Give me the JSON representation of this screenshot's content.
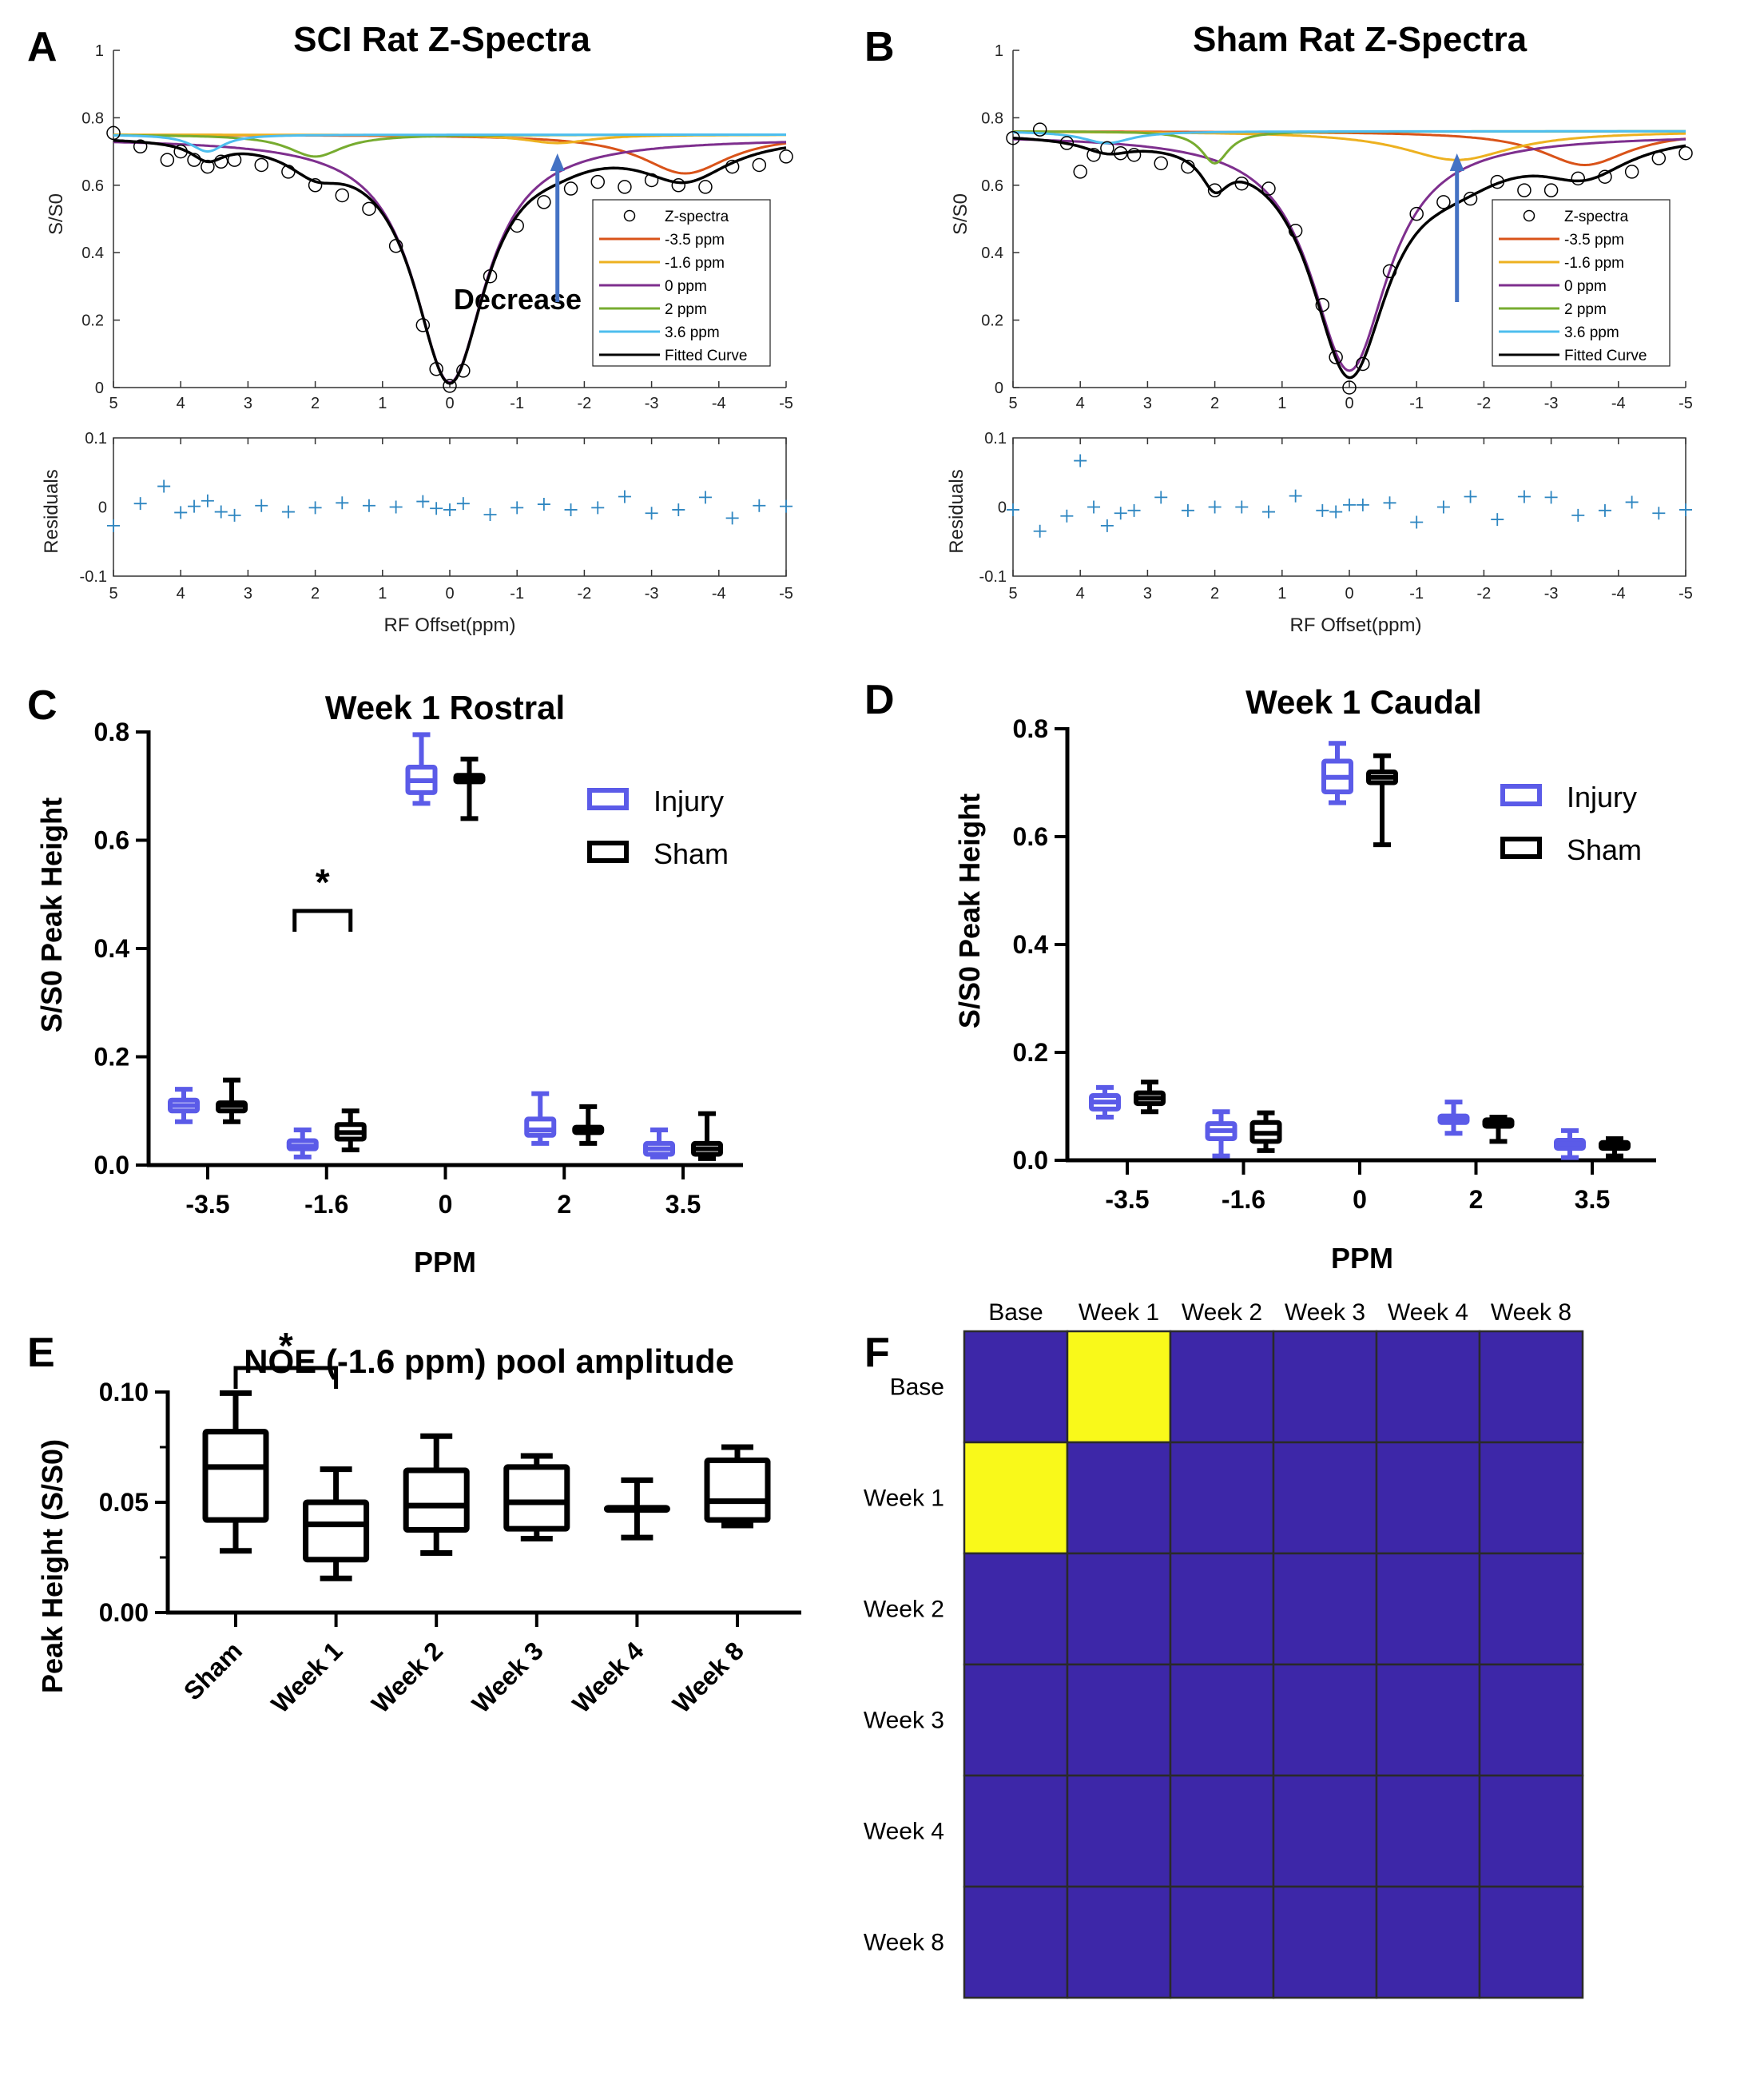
{
  "figure": {
    "panel_letters": [
      "A",
      "B",
      "C",
      "D",
      "E",
      "F"
    ]
  },
  "chart_data": [
    {
      "id": "A",
      "type": "line",
      "title": "SCI Rat Z-Spectra",
      "xlabel": "RF Offset(ppm)",
      "ylabel": "S/S0",
      "xlim": [
        5,
        -5
      ],
      "ylim": [
        0,
        1
      ],
      "xticks": [
        "5",
        "4",
        "3",
        "2",
        "1",
        "0",
        "-1",
        "-2",
        "-3",
        "-4",
        "-5"
      ],
      "yticks": [
        "0",
        "0.2",
        "0.4",
        "0.6",
        "0.8",
        "1"
      ],
      "legend": [
        "Z-spectra",
        "-3.5 ppm",
        "-1.6 ppm",
        "0 ppm",
        "2 ppm",
        "3.6 ppm",
        "Fitted Curve"
      ],
      "legend_position": "lower-right",
      "annotation": "Decrease",
      "arrow_at_ppm": -1.6,
      "baseline": 0.75,
      "pools": [
        {
          "name": "-3.5 ppm",
          "center": -3.5,
          "depth": 0.115,
          "width": 1.6,
          "color": "#D95319"
        },
        {
          "name": "-1.6 ppm",
          "center": -1.6,
          "depth": 0.025,
          "width": 1.2,
          "color": "#EDB120"
        },
        {
          "name": "0 ppm",
          "center": 0,
          "depth": 0.725,
          "width": 1.3,
          "color": "#7E2F8E",
          "offset": -0.01
        },
        {
          "name": "2 ppm",
          "center": 2,
          "depth": 0.065,
          "width": 1.0,
          "color": "#77AC30"
        },
        {
          "name": "3.6 ppm",
          "center": 3.6,
          "depth": 0.05,
          "width": 0.6,
          "color": "#4DBEEE"
        }
      ],
      "fitted_color": "#000000",
      "z_spectra_points": [
        [
          5,
          0.755
        ],
        [
          4.6,
          0.715
        ],
        [
          4.2,
          0.675
        ],
        [
          4.0,
          0.7
        ],
        [
          3.8,
          0.675
        ],
        [
          3.6,
          0.655
        ],
        [
          3.4,
          0.67
        ],
        [
          3.2,
          0.675
        ],
        [
          2.8,
          0.66
        ],
        [
          2.4,
          0.64
        ],
        [
          2.0,
          0.6
        ],
        [
          1.6,
          0.57
        ],
        [
          1.2,
          0.53
        ],
        [
          0.8,
          0.42
        ],
        [
          0.4,
          0.185
        ],
        [
          0.2,
          0.055
        ],
        [
          0,
          0.005
        ],
        [
          -0.2,
          0.05
        ],
        [
          -0.6,
          0.33
        ],
        [
          -1.0,
          0.48
        ],
        [
          -1.4,
          0.55
        ],
        [
          -1.8,
          0.59
        ],
        [
          -2.2,
          0.61
        ],
        [
          -2.6,
          0.595
        ],
        [
          -3.0,
          0.615
        ],
        [
          -3.4,
          0.6
        ],
        [
          -3.8,
          0.595
        ],
        [
          -4.2,
          0.655
        ],
        [
          -4.6,
          0.66
        ],
        [
          -5.0,
          0.685
        ]
      ],
      "residuals": {
        "ylabel": "Residuals",
        "ylim": [
          -0.1,
          0.1
        ],
        "yticks": [
          "-0.1",
          "0",
          "0.1"
        ],
        "points": [
          [
            5,
            -0.027
          ],
          [
            4.6,
            0.005
          ],
          [
            4.25,
            0.03
          ],
          [
            4.0,
            -0.008
          ],
          [
            3.8,
            0.001
          ],
          [
            3.6,
            0.009
          ],
          [
            3.4,
            -0.007
          ],
          [
            3.2,
            -0.012
          ],
          [
            2.8,
            0.002
          ],
          [
            2.4,
            -0.007
          ],
          [
            2.0,
            -0.001
          ],
          [
            1.6,
            0.006
          ],
          [
            1.2,
            0.002
          ],
          [
            0.8,
            0.0
          ],
          [
            0.4,
            0.008
          ],
          [
            0.2,
            -0.002
          ],
          [
            0,
            -0.004
          ],
          [
            -0.2,
            0.005
          ],
          [
            -0.6,
            -0.011
          ],
          [
            -1.0,
            -0.001
          ],
          [
            -1.4,
            0.004
          ],
          [
            -1.8,
            -0.004
          ],
          [
            -2.2,
            -0.001
          ],
          [
            -2.6,
            0.015
          ],
          [
            -3.0,
            -0.009
          ],
          [
            -3.4,
            -0.004
          ],
          [
            -3.8,
            0.014
          ],
          [
            -4.2,
            -0.016
          ],
          [
            -4.6,
            0.002
          ],
          [
            -5.0,
            0.001
          ]
        ]
      }
    },
    {
      "id": "B",
      "type": "line",
      "title": "Sham Rat Z-Spectra",
      "xlabel": "RF Offset(ppm)",
      "ylabel": "S/S0",
      "xlim": [
        5,
        -5
      ],
      "ylim": [
        0,
        1
      ],
      "xticks": [
        "5",
        "4",
        "3",
        "2",
        "1",
        "0",
        "-1",
        "-2",
        "-3",
        "-4",
        "-5"
      ],
      "yticks": [
        "0",
        "0.2",
        "0.4",
        "0.6",
        "0.8",
        "1"
      ],
      "legend": [
        "Z-spectra",
        "-3.5 ppm",
        "-1.6 ppm",
        "0 ppm",
        "2 ppm",
        "3.6 ppm",
        "Fitted Curve"
      ],
      "legend_position": "lower-right",
      "arrow_at_ppm": -1.6,
      "baseline": 0.76,
      "pools": [
        {
          "name": "-3.5 ppm",
          "center": -3.5,
          "depth": 0.1,
          "width": 1.6,
          "color": "#D95319"
        },
        {
          "name": "-1.6 ppm",
          "center": -1.6,
          "depth": 0.085,
          "width": 2.0,
          "color": "#EDB120"
        },
        {
          "name": "0 ppm",
          "center": 0,
          "depth": 0.7,
          "width": 1.4,
          "color": "#7E2F8E",
          "offset": -0.01
        },
        {
          "name": "2 ppm",
          "center": 2,
          "depth": 0.095,
          "width": 0.5,
          "color": "#77AC30"
        },
        {
          "name": "3.6 ppm",
          "center": 3.6,
          "depth": 0.035,
          "width": 0.9,
          "color": "#4DBEEE"
        }
      ],
      "fitted_color": "#000000",
      "z_spectra_points": [
        [
          5,
          0.74
        ],
        [
          4.6,
          0.765
        ],
        [
          4.2,
          0.725
        ],
        [
          4.0,
          0.64
        ],
        [
          3.8,
          0.69
        ],
        [
          3.6,
          0.71
        ],
        [
          3.4,
          0.695
        ],
        [
          3.2,
          0.69
        ],
        [
          2.8,
          0.665
        ],
        [
          2.4,
          0.655
        ],
        [
          2.0,
          0.585
        ],
        [
          1.6,
          0.605
        ],
        [
          1.2,
          0.59
        ],
        [
          0.8,
          0.465
        ],
        [
          0.4,
          0.245
        ],
        [
          0.2,
          0.09
        ],
        [
          0,
          0.0
        ],
        [
          -0.2,
          0.07
        ],
        [
          -0.6,
          0.345
        ],
        [
          -1.0,
          0.515
        ],
        [
          -1.4,
          0.55
        ],
        [
          -1.8,
          0.56
        ],
        [
          -2.2,
          0.61
        ],
        [
          -2.6,
          0.585
        ],
        [
          -3.0,
          0.585
        ],
        [
          -3.4,
          0.62
        ],
        [
          -3.8,
          0.625
        ],
        [
          -4.2,
          0.64
        ],
        [
          -4.6,
          0.68
        ],
        [
          -5.0,
          0.695
        ]
      ],
      "residuals": {
        "ylabel": "Residuals",
        "ylim": [
          -0.1,
          0.1
        ],
        "yticks": [
          "-0.1",
          "0",
          "0.1"
        ],
        "points": [
          [
            5,
            -0.004
          ],
          [
            4.6,
            -0.035
          ],
          [
            4.2,
            -0.013
          ],
          [
            4.0,
            0.067
          ],
          [
            3.8,
            0.0
          ],
          [
            3.6,
            -0.027
          ],
          [
            3.4,
            -0.009
          ],
          [
            3.2,
            -0.005
          ],
          [
            2.8,
            0.014
          ],
          [
            2.4,
            -0.005
          ],
          [
            2.0,
            0.0
          ],
          [
            1.6,
            0.0
          ],
          [
            1.2,
            -0.007
          ],
          [
            0.8,
            0.016
          ],
          [
            0.4,
            -0.005
          ],
          [
            0.2,
            -0.007
          ],
          [
            0,
            0.003
          ],
          [
            -0.2,
            0.003
          ],
          [
            -0.6,
            0.006
          ],
          [
            -1.0,
            -0.022
          ],
          [
            -1.4,
            0.0
          ],
          [
            -1.8,
            0.015
          ],
          [
            -2.2,
            -0.018
          ],
          [
            -2.6,
            0.015
          ],
          [
            -3.0,
            0.014
          ],
          [
            -3.4,
            -0.012
          ],
          [
            -3.8,
            -0.005
          ],
          [
            -4.2,
            0.007
          ],
          [
            -4.6,
            -0.009
          ],
          [
            -5.0,
            -0.004
          ]
        ]
      }
    },
    {
      "id": "C",
      "type": "box",
      "title": "Week 1 Rostral",
      "xlabel": "PPM",
      "ylabel": "S/S0 Peak Height",
      "ylim": [
        0,
        0.8
      ],
      "yticks": [
        "0.0",
        "0.2",
        "0.4",
        "0.6",
        "0.8"
      ],
      "categories": [
        "-3.5",
        "-1.6",
        "0",
        "2",
        "3.5"
      ],
      "legend": [
        "Injury",
        "Sham"
      ],
      "legend_position": "top-right",
      "significance": {
        "category": "-1.6",
        "label": "*"
      },
      "series": [
        {
          "name": "Injury",
          "color": "#5B5BE8",
          "boxes": [
            {
              "min": 0.08,
              "q1": 0.1,
              "median": 0.11,
              "q3": 0.12,
              "max": 0.14
            },
            {
              "min": 0.015,
              "q1": 0.03,
              "median": 0.035,
              "q3": 0.045,
              "max": 0.065
            },
            {
              "min": 0.668,
              "q1": 0.688,
              "median": 0.71,
              "q3": 0.735,
              "max": 0.795
            },
            {
              "min": 0.04,
              "q1": 0.055,
              "median": 0.065,
              "q3": 0.085,
              "max": 0.132
            },
            {
              "min": 0.015,
              "q1": 0.02,
              "median": 0.03,
              "q3": 0.04,
              "max": 0.065
            }
          ]
        },
        {
          "name": "Sham",
          "color": "#000000",
          "boxes": [
            {
              "min": 0.08,
              "q1": 0.1,
              "median": 0.11,
              "q3": 0.115,
              "max": 0.157
            },
            {
              "min": 0.028,
              "q1": 0.048,
              "median": 0.06,
              "q3": 0.075,
              "max": 0.1
            },
            {
              "min": 0.64,
              "q1": 0.708,
              "median": 0.713,
              "q3": 0.72,
              "max": 0.75
            },
            {
              "min": 0.04,
              "q1": 0.06,
              "median": 0.065,
              "q3": 0.07,
              "max": 0.108
            },
            {
              "min": 0.012,
              "q1": 0.02,
              "median": 0.03,
              "q3": 0.04,
              "max": 0.095
            }
          ]
        }
      ]
    },
    {
      "id": "D",
      "type": "box",
      "title": "Week 1 Caudal",
      "xlabel": "PPM",
      "ylabel": "S/S0 Peak Height",
      "ylim": [
        0,
        0.8
      ],
      "yticks": [
        "0.0",
        "0.2",
        "0.4",
        "0.6",
        "0.8"
      ],
      "categories": [
        "-3.5",
        "-1.6",
        "0",
        "2",
        "3.5"
      ],
      "legend": [
        "Injury",
        "Sham"
      ],
      "legend_position": "top-right",
      "series": [
        {
          "name": "Injury",
          "color": "#5B5BE8",
          "boxes": [
            {
              "min": 0.08,
              "q1": 0.095,
              "median": 0.108,
              "q3": 0.12,
              "max": 0.135
            },
            {
              "min": 0.008,
              "q1": 0.04,
              "median": 0.055,
              "q3": 0.068,
              "max": 0.09
            },
            {
              "min": 0.663,
              "q1": 0.683,
              "median": 0.71,
              "q3": 0.74,
              "max": 0.773
            },
            {
              "min": 0.05,
              "q1": 0.07,
              "median": 0.075,
              "q3": 0.082,
              "max": 0.108
            },
            {
              "min": 0.005,
              "q1": 0.022,
              "median": 0.03,
              "q3": 0.037,
              "max": 0.055
            }
          ]
        },
        {
          "name": "Sham",
          "color": "#000000",
          "boxes": [
            {
              "min": 0.09,
              "q1": 0.105,
              "median": 0.115,
              "q3": 0.125,
              "max": 0.145
            },
            {
              "min": 0.018,
              "q1": 0.035,
              "median": 0.05,
              "q3": 0.07,
              "max": 0.088
            },
            {
              "min": 0.585,
              "q1": 0.7,
              "median": 0.71,
              "q3": 0.72,
              "max": 0.75
            },
            {
              "min": 0.035,
              "q1": 0.063,
              "median": 0.07,
              "q3": 0.075,
              "max": 0.08
            },
            {
              "min": 0.008,
              "q1": 0.022,
              "median": 0.027,
              "q3": 0.033,
              "max": 0.04
            }
          ]
        }
      ]
    },
    {
      "id": "E",
      "type": "box",
      "title": "NOE (-1.6 ppm) pool amplitude",
      "xlabel": "",
      "ylabel": "Peak Height (S/S0)",
      "ylim": [
        0,
        0.1
      ],
      "yticks": [
        "0.00",
        "0.05",
        "0.10"
      ],
      "categories": [
        "Sham",
        "Week 1",
        "Week 2",
        "Week 3",
        "Week 4",
        "Week 8"
      ],
      "significance": {
        "from": "Sham",
        "to": "Week 1",
        "label": "*"
      },
      "series": [
        {
          "name": "NOE",
          "color": "#000000",
          "boxes": [
            {
              "min": 0.028,
              "q1": 0.042,
              "median": 0.066,
              "q3": 0.082,
              "max": 0.0995
            },
            {
              "min": 0.0155,
              "q1": 0.024,
              "median": 0.04,
              "q3": 0.05,
              "max": 0.065
            },
            {
              "min": 0.027,
              "q1": 0.0375,
              "median": 0.0485,
              "q3": 0.0645,
              "max": 0.08
            },
            {
              "min": 0.0335,
              "q1": 0.038,
              "median": 0.05,
              "q3": 0.066,
              "max": 0.071
            },
            {
              "min": 0.034,
              "q1": 0.0465,
              "median": 0.047,
              "q3": 0.0475,
              "max": 0.06
            },
            {
              "min": 0.0395,
              "q1": 0.042,
              "median": 0.0505,
              "q3": 0.069,
              "max": 0.075
            }
          ]
        }
      ]
    },
    {
      "id": "F",
      "type": "heatmap",
      "row_labels": [
        "Base",
        "Week 1",
        "Week 2",
        "Week 3",
        "Week 4",
        "Week 8"
      ],
      "col_labels": [
        "Base",
        "Week 1",
        "Week 2",
        "Week 3",
        "Week 4",
        "Week 8"
      ],
      "values": [
        [
          0,
          1,
          0,
          0,
          0,
          0
        ],
        [
          1,
          0,
          0,
          0,
          0,
          0
        ],
        [
          0,
          0,
          0,
          0,
          0,
          0
        ],
        [
          0,
          0,
          0,
          0,
          0,
          0
        ],
        [
          0,
          0,
          0,
          0,
          0,
          0
        ],
        [
          0,
          0,
          0,
          0,
          0,
          0
        ]
      ],
      "colors": {
        "0": "#3D27A8",
        "1": "#F9F91A"
      }
    }
  ]
}
